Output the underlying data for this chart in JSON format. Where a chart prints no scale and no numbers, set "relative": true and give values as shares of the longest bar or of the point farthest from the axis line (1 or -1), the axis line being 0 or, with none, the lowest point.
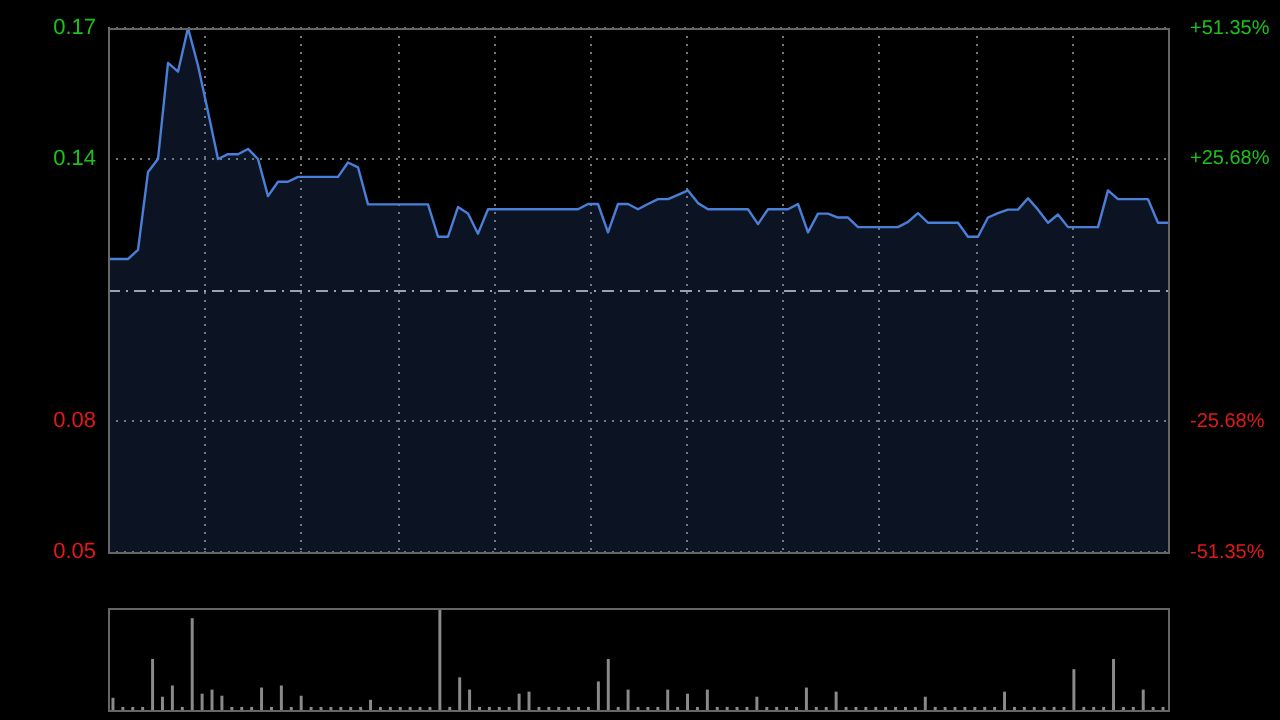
{
  "chart_data": [
    {
      "type": "area",
      "categories": [
        null,
        null,
        null,
        null,
        null,
        null,
        null,
        null,
        null,
        null,
        null,
        null,
        null,
        null,
        null,
        null,
        null,
        null,
        null,
        null,
        null,
        null,
        null,
        null,
        null,
        null,
        null,
        null,
        null,
        null,
        null,
        null,
        null,
        null,
        null,
        null,
        null,
        null,
        null,
        null,
        null,
        null,
        null,
        null,
        null,
        null,
        null,
        null,
        null,
        null,
        null,
        null,
        null,
        null,
        null,
        null,
        null,
        null,
        null,
        null,
        null,
        null,
        null,
        null,
        null,
        null,
        null,
        null,
        null,
        null,
        null,
        null,
        null,
        null,
        null,
        null,
        null,
        null,
        null,
        null,
        null,
        null,
        null,
        null,
        null,
        null,
        null,
        null,
        null,
        null,
        null,
        null,
        null,
        null,
        null,
        null,
        null,
        null,
        null,
        null,
        null,
        null,
        null,
        null,
        null,
        null,
        null
      ],
      "series": [
        {
          "color": "#4a7fd8",
          "values": [
            0.1171,
            0.1171,
            0.1171,
            0.1192,
            0.137,
            0.14,
            0.162,
            0.16,
            0.17,
            0.1614,
            0.1508,
            0.14,
            0.1411,
            0.1411,
            0.1423,
            0.14,
            0.1315,
            0.1348,
            0.1348,
            0.1359,
            0.1359,
            0.1359,
            0.1359,
            0.1359,
            0.1392,
            0.1381,
            0.1296,
            0.1296,
            0.1296,
            0.1296,
            0.1296,
            0.1296,
            0.1296,
            0.1222,
            0.1222,
            0.129,
            0.1275,
            0.1229,
            0.1285,
            0.1285,
            0.1285,
            0.1285,
            0.1285,
            0.1285,
            0.1285,
            0.1285,
            0.1285,
            0.1285,
            0.1297,
            0.1297,
            0.1232,
            0.1297,
            0.1297,
            0.1285,
            0.1297,
            0.1308,
            0.1308,
            0.1318,
            0.1328,
            0.1299,
            0.1285,
            0.1285,
            0.1285,
            0.1285,
            0.1285,
            0.1251,
            0.1285,
            0.1285,
            0.1285,
            0.1297,
            0.1232,
            0.1275,
            0.1275,
            0.1266,
            0.1266,
            0.1244,
            0.1244,
            0.1244,
            0.1244,
            0.1244,
            0.1256,
            0.1276,
            0.1254,
            0.1254,
            0.1254,
            0.1254,
            0.1222,
            0.1222,
            0.1266,
            0.1276,
            0.1284,
            0.1284,
            0.131,
            0.1284,
            0.1254,
            0.1273,
            0.1244,
            0.1244,
            0.1244,
            0.1244,
            0.1328,
            0.1308,
            0.1308,
            0.1308,
            0.1308,
            0.1254,
            0.1254
          ]
        }
      ],
      "ylim": [
        0.05,
        0.17
      ],
      "yticks": [
        0.05,
        0.08,
        0.14,
        0.17
      ],
      "y2lim": [
        -51.35,
        51.35
      ],
      "y2ticks": [
        {
          "value": -51.35,
          "label": "-51.35%"
        },
        {
          "value": -25.68,
          "label": "-25.68%"
        },
        {
          "value": 25.68,
          "label": "+25.68%"
        },
        {
          "value": 51.35,
          "label": "+51.35%"
        }
      ],
      "ref_lines": [
        {
          "axis": "y",
          "value": 0.11,
          "color": "#aaaaaa",
          "line_style": "dashed"
        }
      ],
      "grid": true,
      "legend": false,
      "marker": "none",
      "tick_labels": "y"
    },
    {
      "type": "bar",
      "relative": true,
      "tick_labels": false,
      "categories": [
        null,
        null,
        null,
        null,
        null,
        null,
        null,
        null,
        null,
        null,
        null,
        null,
        null,
        null,
        null,
        null,
        null,
        null,
        null,
        null,
        null,
        null,
        null,
        null,
        null,
        null,
        null,
        null,
        null,
        null,
        null,
        null,
        null,
        null,
        null,
        null,
        null,
        null,
        null,
        null,
        null,
        null,
        null,
        null,
        null,
        null,
        null,
        null,
        null,
        null,
        null,
        null,
        null,
        null,
        null,
        null,
        null,
        null,
        null,
        null,
        null,
        null,
        null,
        null,
        null,
        null,
        null,
        null,
        null,
        null,
        null,
        null,
        null,
        null,
        null,
        null,
        null,
        null,
        null,
        null,
        null,
        null,
        null,
        null,
        null,
        null,
        null,
        null,
        null,
        null,
        null,
        null,
        null,
        null,
        null,
        null,
        null,
        null,
        null,
        null,
        null,
        null,
        null,
        null,
        null,
        null,
        null
      ],
      "color": "#8a8a8a",
      "values": [
        0.12,
        0.03,
        0.03,
        0.03,
        0.5,
        0.13,
        0.24,
        0.03,
        0.9,
        0.16,
        0.2,
        0.14,
        0.03,
        0.03,
        0.03,
        0.22,
        0.03,
        0.24,
        0.03,
        0.14,
        0.03,
        0.03,
        0.03,
        0.03,
        0.03,
        0.03,
        0.1,
        0.03,
        0.03,
        0.03,
        0.03,
        0.03,
        0.03,
        1,
        0.03,
        0.32,
        0.2,
        0.03,
        0.03,
        0.03,
        0.03,
        0.16,
        0.18,
        0.03,
        0.03,
        0.03,
        0.03,
        0.03,
        0.03,
        0.28,
        0.5,
        0.03,
        0.2,
        0.03,
        0.03,
        0.03,
        0.2,
        0.03,
        0.16,
        0.03,
        0.2,
        0.03,
        0.03,
        0.03,
        0.03,
        0.13,
        0.03,
        0.03,
        0.03,
        0.03,
        0.22,
        0.03,
        0.03,
        0.18,
        0.03,
        0.03,
        0.03,
        0.03,
        0.03,
        0.03,
        0.03,
        0.03,
        0.13,
        0.03,
        0.03,
        0.03,
        0.03,
        0.03,
        0.03,
        0.03,
        0.18,
        0.03,
        0.03,
        0.03,
        0.03,
        0.03,
        0.03,
        0.4,
        0.03,
        0.03,
        0.03,
        0.5,
        0.03,
        0.03,
        0.2,
        0.03,
        0.03
      ],
      "legend": false
    }
  ]
}
